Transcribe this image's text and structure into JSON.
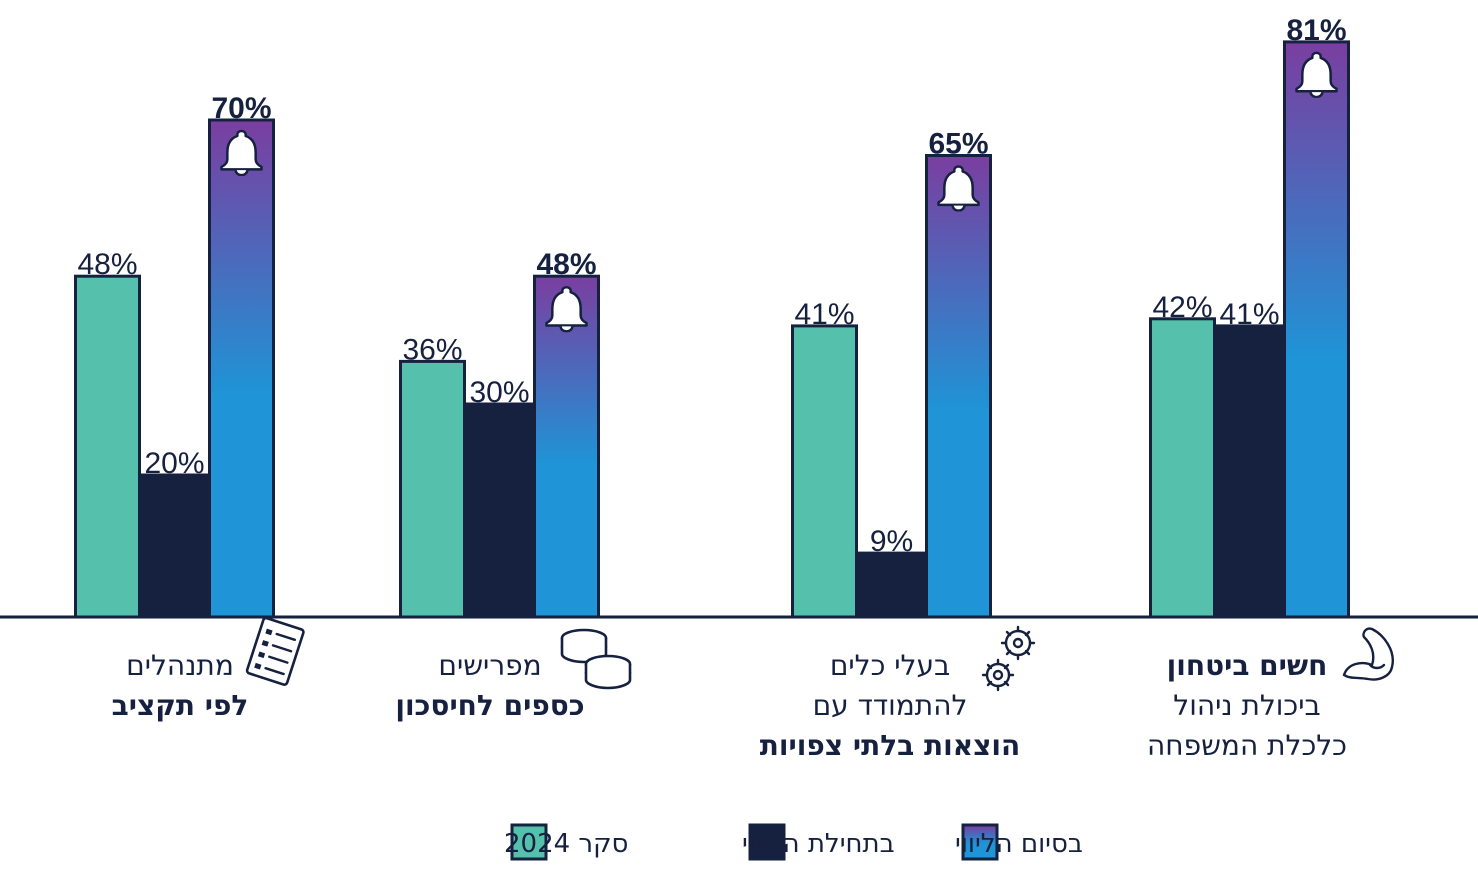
{
  "chart_data": {
    "type": "bar",
    "ylim": [
      0,
      90
    ],
    "grid": false,
    "legend_position": "bottom",
    "series": [
      {
        "name": "סקר 2024",
        "key": "survey",
        "color": "#55c1ad",
        "values": [
          42,
          41,
          36,
          48
        ]
      },
      {
        "name": "בתחילת הליווי",
        "key": "start",
        "color": "#16213f",
        "values": [
          41,
          9,
          30,
          20
        ]
      },
      {
        "name": "בסיום הליווי",
        "key": "end",
        "color_top": "#7a3ea0",
        "color_bottom": "#1f94d6",
        "values": [
          81,
          65,
          48,
          70
        ]
      }
    ],
    "categories": [
      {
        "id": "security",
        "icon": "flexed-arm-icon",
        "lines": [
          {
            "text": "חשים ביטחון",
            "bold": true
          },
          {
            "text": "ביכולת ניהול",
            "bold": false
          },
          {
            "text": "כלכלת המשפחה",
            "bold": false
          }
        ]
      },
      {
        "id": "unexpected",
        "icon": "gears-icon",
        "lines": [
          {
            "text": "בעלי כלים",
            "bold": false
          },
          {
            "text": "להתמודד עם",
            "bold": false
          },
          {
            "text": "הוצאות בלתי צפויות",
            "bold": true
          }
        ]
      },
      {
        "id": "savings",
        "icon": "coins-icon",
        "lines": [
          {
            "text": "מפרישים",
            "bold": false
          },
          {
            "text": "כספים לחיסכון",
            "bold": true
          }
        ]
      },
      {
        "id": "budget",
        "icon": "checklist-icon",
        "lines": [
          {
            "text": "מתנהלים",
            "bold": false
          },
          {
            "text": "לפי תקציב",
            "bold": true
          }
        ]
      }
    ],
    "value_labels": [
      [
        "42%",
        "41%",
        "81%"
      ],
      [
        "41%",
        "9%",
        "65%"
      ],
      [
        "36%",
        "30%",
        "48%"
      ],
      [
        "48%",
        "20%",
        "70%"
      ]
    ],
    "bar_icon": "bell-icon",
    "axis_color": "#16213f"
  }
}
